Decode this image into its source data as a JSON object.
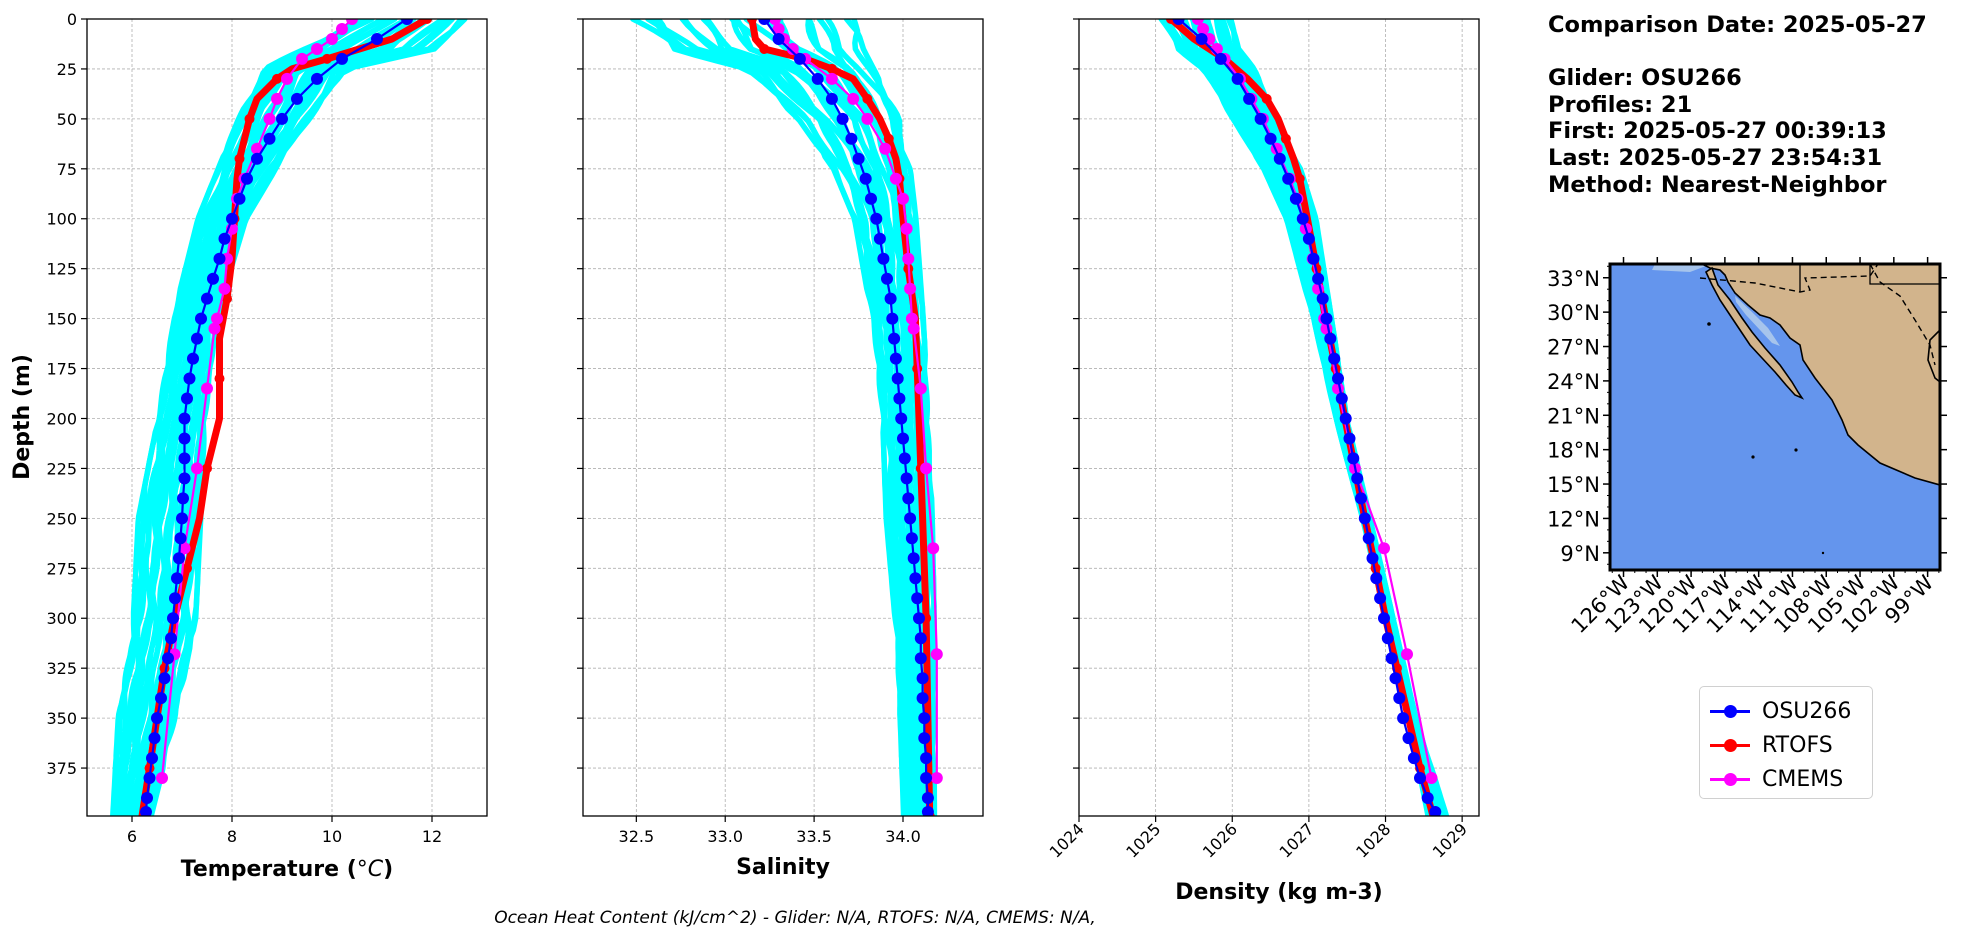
{
  "info": {
    "comparison_date": "Comparison Date: 2025-05-27",
    "glider": "Glider: OSU266",
    "profiles": "Profiles: 21",
    "first": "First: 2025-05-27 00:39:13",
    "last": "Last: 2025-05-27 23:54:31",
    "method": "Method: Nearest-Neighbor"
  },
  "footnote": "Ocean Heat Content (kJ/cm^2) - Glider: N/A,  RTOFS: N/A,  CMEMS: N/A,",
  "colors": {
    "glider": "#0000ff",
    "rtofs": "#ff0000",
    "cmems": "#ff00ff",
    "raw": "#00ffff",
    "ocean": "#6495ed",
    "land": "#d2b48c",
    "lakes": "#a6c4ec"
  },
  "legend": [
    {
      "label": "OSU266",
      "color": "#0000ff"
    },
    {
      "label": "RTOFS",
      "color": "#ff0000"
    },
    {
      "label": "CMEMS",
      "color": "#ff00ff"
    }
  ],
  "chart_data": [
    {
      "type": "line",
      "xlabel": "Temperature (°C)",
      "ylabel": "Depth (m)",
      "xlim": [
        5.1,
        13.1
      ],
      "ylim": [
        399,
        0
      ],
      "xticks": [
        6,
        8,
        10,
        12
      ],
      "yticks": [
        0,
        25,
        50,
        75,
        100,
        125,
        150,
        175,
        200,
        225,
        250,
        275,
        300,
        325,
        350,
        375
      ],
      "grid": true,
      "raw_profiles_range": {
        "depth": [
          0,
          15,
          25,
          50,
          75,
          100,
          150,
          200,
          250,
          300,
          350,
          399
        ],
        "min": [
          10.5,
          9.3,
          8.6,
          8.1,
          7.7,
          7.3,
          6.8,
          6.5,
          6.1,
          6.0,
          5.7,
          5.6
        ],
        "max": [
          12.7,
          12.1,
          10.3,
          9.6,
          8.9,
          8.3,
          7.7,
          7.5,
          7.4,
          7.3,
          6.9,
          6.4
        ]
      },
      "series": [
        {
          "name": "OSU266",
          "depth": [
            0,
            10,
            20,
            30,
            40,
            50,
            60,
            70,
            80,
            90,
            100,
            110,
            120,
            130,
            140,
            150,
            160,
            170,
            180,
            190,
            200,
            210,
            220,
            230,
            240,
            250,
            260,
            270,
            280,
            290,
            300,
            310,
            320,
            330,
            340,
            350,
            360,
            370,
            380,
            390,
            397
          ],
          "x": [
            11.5,
            10.9,
            10.2,
            9.7,
            9.3,
            9.0,
            8.75,
            8.5,
            8.3,
            8.15,
            8.0,
            7.85,
            7.75,
            7.62,
            7.5,
            7.38,
            7.3,
            7.22,
            7.15,
            7.1,
            7.05,
            7.05,
            7.05,
            7.05,
            7.02,
            7.0,
            6.97,
            6.94,
            6.9,
            6.86,
            6.82,
            6.78,
            6.72,
            6.65,
            6.58,
            6.5,
            6.45,
            6.4,
            6.35,
            6.3,
            6.28
          ]
        },
        {
          "name": "RTOFS",
          "depth": [
            0,
            10,
            20,
            25,
            30,
            40,
            50,
            60,
            70,
            80,
            100,
            120,
            140,
            160,
            180,
            200,
            225,
            250,
            275,
            300,
            325,
            350,
            375,
            399
          ],
          "x": [
            11.9,
            11.2,
            9.9,
            9.2,
            8.9,
            8.5,
            8.35,
            8.25,
            8.15,
            8.1,
            8.05,
            8.0,
            7.9,
            7.75,
            7.75,
            7.75,
            7.5,
            7.35,
            7.1,
            6.85,
            6.65,
            6.5,
            6.35,
            6.2
          ]
        },
        {
          "name": "CMEMS",
          "depth": [
            0,
            5,
            10,
            15,
            20,
            30,
            40,
            50,
            65,
            80,
            90,
            105,
            120,
            135,
            150,
            155,
            185,
            225,
            265,
            318,
            380
          ],
          "x": [
            10.4,
            10.2,
            10.0,
            9.7,
            9.4,
            9.1,
            8.9,
            8.75,
            8.5,
            8.25,
            8.1,
            8.0,
            7.9,
            7.85,
            7.7,
            7.65,
            7.5,
            7.3,
            7.05,
            6.85,
            6.6
          ]
        }
      ]
    },
    {
      "type": "line",
      "xlabel": "Salinity",
      "xlim": [
        32.2,
        34.45
      ],
      "ylim": [
        399,
        0
      ],
      "xticks": [
        32.5,
        33.0,
        33.5,
        34.0
      ],
      "grid": true,
      "raw_profiles_range": {
        "depth": [
          0,
          15,
          25,
          50,
          75,
          100,
          150,
          200,
          250,
          300,
          350,
          399
        ],
        "min": [
          32.45,
          32.65,
          33.1,
          33.4,
          33.6,
          33.72,
          33.82,
          33.88,
          33.9,
          33.95,
          33.98,
          34.0
        ],
        "max": [
          33.75,
          33.8,
          33.85,
          34.0,
          34.05,
          34.08,
          34.12,
          34.15,
          34.17,
          34.18,
          34.18,
          34.18
        ]
      },
      "series": [
        {
          "name": "OSU266",
          "depth": [
            0,
            10,
            20,
            30,
            40,
            50,
            60,
            70,
            80,
            90,
            100,
            110,
            120,
            130,
            140,
            150,
            160,
            170,
            180,
            190,
            200,
            210,
            220,
            230,
            240,
            250,
            260,
            270,
            280,
            290,
            300,
            310,
            320,
            330,
            340,
            350,
            360,
            370,
            380,
            390,
            397
          ],
          "x": [
            33.22,
            33.3,
            33.42,
            33.52,
            33.6,
            33.66,
            33.71,
            33.75,
            33.79,
            33.82,
            33.85,
            33.87,
            33.89,
            33.91,
            33.93,
            33.94,
            33.95,
            33.96,
            33.97,
            33.98,
            33.99,
            34.0,
            34.01,
            34.02,
            34.03,
            34.04,
            34.05,
            34.06,
            34.07,
            34.08,
            34.09,
            34.1,
            34.1,
            34.11,
            34.11,
            34.12,
            34.12,
            34.13,
            34.13,
            34.14,
            34.14
          ]
        },
        {
          "name": "RTOFS",
          "depth": [
            0,
            10,
            15,
            20,
            25,
            30,
            40,
            50,
            60,
            70,
            80,
            100,
            125,
            150,
            175,
            200,
            225,
            250,
            300,
            350,
            399
          ],
          "x": [
            33.15,
            33.17,
            33.22,
            33.45,
            33.6,
            33.72,
            33.8,
            33.87,
            33.92,
            33.96,
            33.98,
            34.0,
            34.03,
            34.07,
            34.08,
            34.09,
            34.1,
            34.11,
            34.13,
            34.14,
            34.15
          ]
        },
        {
          "name": "CMEMS",
          "depth": [
            0,
            5,
            10,
            15,
            20,
            30,
            40,
            50,
            65,
            80,
            90,
            105,
            120,
            135,
            150,
            155,
            185,
            225,
            265,
            318,
            380
          ],
          "x": [
            33.28,
            33.3,
            33.33,
            33.38,
            33.45,
            33.6,
            33.72,
            33.8,
            33.9,
            33.96,
            34.0,
            34.02,
            34.03,
            34.04,
            34.05,
            34.06,
            34.1,
            34.13,
            34.17,
            34.19,
            34.19
          ]
        }
      ]
    },
    {
      "type": "line",
      "xlabel": "Density (kg m-3)",
      "xlim": [
        1024.0,
        1029.22
      ],
      "ylim": [
        399,
        0
      ],
      "xticks": [
        1024,
        1025,
        1026,
        1027,
        1028,
        1029
      ],
      "grid": true,
      "raw_profiles_range": {
        "depth": [
          0,
          15,
          25,
          50,
          75,
          100,
          150,
          200,
          250,
          300,
          350,
          399
        ],
        "min": [
          1025.05,
          1025.25,
          1025.6,
          1026.0,
          1026.4,
          1026.7,
          1027.05,
          1027.35,
          1027.7,
          1028.0,
          1028.3,
          1028.55
        ],
        "max": [
          1026.0,
          1026.1,
          1026.3,
          1026.6,
          1026.9,
          1027.1,
          1027.3,
          1027.5,
          1027.8,
          1028.1,
          1028.4,
          1028.8
        ]
      },
      "series": [
        {
          "name": "OSU266",
          "depth": [
            0,
            10,
            20,
            30,
            40,
            50,
            60,
            70,
            80,
            90,
            100,
            110,
            120,
            130,
            140,
            150,
            160,
            170,
            180,
            190,
            200,
            210,
            220,
            230,
            240,
            250,
            260,
            270,
            280,
            290,
            300,
            310,
            320,
            330,
            340,
            350,
            360,
            370,
            380,
            390,
            397
          ],
          "x": [
            1025.3,
            1025.6,
            1025.85,
            1026.07,
            1026.22,
            1026.37,
            1026.5,
            1026.62,
            1026.73,
            1026.83,
            1026.92,
            1027.0,
            1027.06,
            1027.12,
            1027.18,
            1027.23,
            1027.28,
            1027.33,
            1027.38,
            1027.43,
            1027.48,
            1027.53,
            1027.58,
            1027.63,
            1027.68,
            1027.73,
            1027.78,
            1027.83,
            1027.88,
            1027.93,
            1027.98,
            1028.03,
            1028.08,
            1028.13,
            1028.18,
            1028.23,
            1028.3,
            1028.37,
            1028.45,
            1028.55,
            1028.65
          ]
        },
        {
          "name": "RTOFS",
          "depth": [
            0,
            10,
            20,
            30,
            40,
            50,
            60,
            70,
            80,
            100,
            125,
            150,
            175,
            200,
            225,
            250,
            275,
            300,
            325,
            350,
            375,
            399
          ],
          "x": [
            1025.2,
            1025.5,
            1025.9,
            1026.2,
            1026.45,
            1026.6,
            1026.7,
            1026.8,
            1026.88,
            1026.98,
            1027.1,
            1027.22,
            1027.35,
            1027.47,
            1027.6,
            1027.73,
            1027.87,
            1028.0,
            1028.15,
            1028.3,
            1028.45,
            1028.62
          ]
        },
        {
          "name": "CMEMS",
          "depth": [
            0,
            5,
            10,
            15,
            20,
            30,
            40,
            50,
            65,
            80,
            90,
            105,
            120,
            135,
            150,
            155,
            185,
            225,
            265,
            318,
            380
          ],
          "x": [
            1025.55,
            1025.62,
            1025.7,
            1025.8,
            1025.9,
            1026.1,
            1026.25,
            1026.4,
            1026.58,
            1026.75,
            1026.85,
            1026.96,
            1027.05,
            1027.12,
            1027.2,
            1027.23,
            1027.38,
            1027.6,
            1027.98,
            1028.28,
            1028.6
          ]
        }
      ]
    },
    {
      "type": "map",
      "lat_range": [
        7.5,
        34.2
      ],
      "lon_range": [
        -127.2,
        -97.9
      ],
      "ylabels": [
        "33°N",
        "30°N",
        "27°N",
        "24°N",
        "21°N",
        "18°N",
        "15°N",
        "12°N",
        "9°N"
      ],
      "xlabels": [
        "126°W",
        "123°W",
        "120°W",
        "117°W",
        "114°W",
        "111°W",
        "108°W",
        "105°W",
        "102°W",
        "99°W"
      ],
      "ocean_color": "#6495ed",
      "land_color": "#d2b48c"
    }
  ]
}
